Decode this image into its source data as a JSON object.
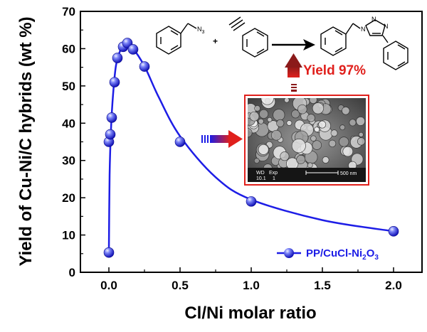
{
  "chart_data": {
    "type": "scatter",
    "title": "",
    "xlabel": "Cl/Ni molar ratio",
    "ylabel": "Yield of Cu-Ni/C hybrids (wt %)",
    "xlim": [
      -0.2,
      2.2
    ],
    "ylim": [
      0,
      70
    ],
    "x_ticks": [
      "0.0",
      "0.5",
      "1.0",
      "1.5",
      "2.0"
    ],
    "y_ticks": [
      "0",
      "10",
      "20",
      "30",
      "40",
      "50",
      "60",
      "70"
    ],
    "grid": false,
    "legend_position": "bottom-right",
    "series": [
      {
        "name_main": "PP/CuCl-Ni",
        "name_sub": "2",
        "name_mid": "O",
        "name_sub2": "3",
        "color": "#1d1de6",
        "points": [
          {
            "x": 0.0,
            "y": 5.3
          },
          {
            "x": 0.0,
            "y": 35.0
          },
          {
            "x": 0.01,
            "y": 37.0
          },
          {
            "x": 0.02,
            "y": 41.5
          },
          {
            "x": 0.04,
            "y": 51.0
          },
          {
            "x": 0.06,
            "y": 57.5
          },
          {
            "x": 0.1,
            "y": 60.5
          },
          {
            "x": 0.13,
            "y": 61.5
          },
          {
            "x": 0.17,
            "y": 59.8
          },
          {
            "x": 0.25,
            "y": 55.2
          },
          {
            "x": 0.5,
            "y": 35.0
          },
          {
            "x": 1.0,
            "y": 19.0
          },
          {
            "x": 2.0,
            "y": 11.0
          }
        ],
        "fit_curve": [
          {
            "x": 0.0,
            "y": 5.3
          },
          {
            "x": 0.005,
            "y": 26.0
          },
          {
            "x": 0.015,
            "y": 38.5
          },
          {
            "x": 0.03,
            "y": 48.0
          },
          {
            "x": 0.05,
            "y": 55.5
          },
          {
            "x": 0.08,
            "y": 59.5
          },
          {
            "x": 0.12,
            "y": 61.3
          },
          {
            "x": 0.16,
            "y": 60.5
          },
          {
            "x": 0.25,
            "y": 55.3
          },
          {
            "x": 0.35,
            "y": 47.0
          },
          {
            "x": 0.5,
            "y": 36.5
          },
          {
            "x": 0.75,
            "y": 25.5
          },
          {
            "x": 1.0,
            "y": 19.5
          },
          {
            "x": 1.5,
            "y": 14.0
          },
          {
            "x": 2.0,
            "y": 11.0
          }
        ]
      }
    ]
  },
  "inset": {
    "reaction": {
      "n3_label": "N",
      "n3_sub": "3",
      "plus": "+",
      "product_n_labels": [
        "N",
        "N",
        "N"
      ]
    },
    "yield_label": "Yield 97%",
    "sem": {
      "wd": "WD",
      "wd_value": "10.1",
      "exp": "Exp",
      "exp_value": "1",
      "scale": "500 nm"
    },
    "colors": {
      "frame": "#e0201c",
      "arrow_gradient_start": "#1d1de6",
      "arrow_gradient_end": "#e0201c",
      "reaction_arrow": "#000000"
    }
  }
}
